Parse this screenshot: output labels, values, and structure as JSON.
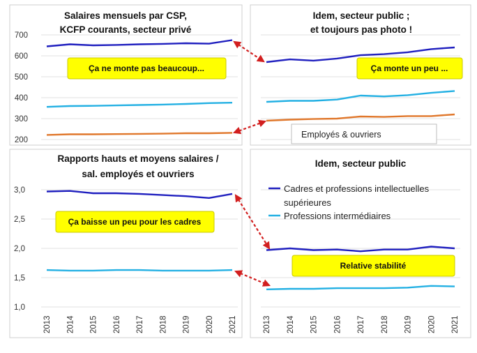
{
  "years": [
    "2013",
    "2014",
    "2015",
    "2016",
    "2017",
    "2018",
    "2019",
    "2020",
    "2021"
  ],
  "colors": {
    "cadres": "#1f1fbf",
    "intermediaires": "#23b0e3",
    "ouvriers": "#e0772b",
    "arrow": "#d21f1f",
    "note_fill": "#ffff00",
    "note_border": "#c9c900"
  },
  "chart_data": [
    {
      "type": "line",
      "title": [
        "Salaires mensuels par CSP,",
        "KCFP courants, secteur privé"
      ],
      "categories": [
        "2013",
        "2014",
        "2015",
        "2016",
        "2017",
        "2018",
        "2019",
        "2020",
        "2021"
      ],
      "ylim": [
        200,
        700
      ],
      "yticks": [
        "700",
        "600",
        "500",
        "400",
        "300",
        "200"
      ],
      "series": [
        {
          "key": "cadres",
          "values": [
            645,
            655,
            650,
            652,
            655,
            657,
            660,
            658,
            675
          ]
        },
        {
          "key": "intermediaires",
          "values": [
            356,
            360,
            361,
            363,
            365,
            367,
            370,
            374,
            376
          ]
        },
        {
          "key": "ouvriers",
          "values": [
            222,
            225,
            225,
            226,
            227,
            228,
            230,
            230,
            232
          ]
        }
      ],
      "annotation": "Ça ne monte pas beaucoup..."
    },
    {
      "type": "line",
      "title": [
        "Idem, secteur public ;",
        "et toujours pas photo !"
      ],
      "categories": [
        "2013",
        "2014",
        "2015",
        "2016",
        "2017",
        "2018",
        "2019",
        "2020",
        "2021"
      ],
      "ylim": [
        200,
        700
      ],
      "series": [
        {
          "key": "cadres",
          "values": [
            570,
            583,
            577,
            587,
            603,
            608,
            617,
            632,
            640
          ]
        },
        {
          "key": "intermediaires",
          "values": [
            380,
            385,
            385,
            391,
            410,
            406,
            412,
            423,
            432
          ]
        },
        {
          "key": "ouvriers",
          "values": [
            290,
            295,
            298,
            300,
            310,
            308,
            312,
            312,
            320
          ]
        }
      ],
      "annotation": "Ça monte un peu ...",
      "callout": "Employés & ouvriers"
    },
    {
      "type": "line",
      "title": [
        "Rapports hauts et moyens salaires /",
        "sal. employés et ouvriers"
      ],
      "categories": [
        "2013",
        "2014",
        "2015",
        "2016",
        "2017",
        "2018",
        "2019",
        "2020",
        "2021"
      ],
      "ylim": [
        1.0,
        3.0
      ],
      "yticks": [
        "3,0",
        "2,5",
        "2,0",
        "1,5",
        "1,0"
      ],
      "series": [
        {
          "key": "cadres",
          "values": [
            2.97,
            2.98,
            2.94,
            2.94,
            2.93,
            2.91,
            2.89,
            2.86,
            2.93
          ]
        },
        {
          "key": "intermediaires",
          "values": [
            1.63,
            1.62,
            1.62,
            1.63,
            1.63,
            1.62,
            1.62,
            1.62,
            1.63
          ]
        }
      ],
      "annotation": "Ça baisse un peu pour les cadres"
    },
    {
      "type": "line",
      "title": [
        "Idem, secteur public"
      ],
      "categories": [
        "2013",
        "2014",
        "2015",
        "2016",
        "2017",
        "2018",
        "2019",
        "2020",
        "2021"
      ],
      "ylim": [
        1.0,
        3.0
      ],
      "series": [
        {
          "key": "cadres",
          "name": "Cadres et professions intellectuelles supérieures",
          "values": [
            1.97,
            2.0,
            1.97,
            1.98,
            1.95,
            1.98,
            1.98,
            2.03,
            2.0
          ]
        },
        {
          "key": "intermediaires",
          "name": "Professions intermédiaires",
          "values": [
            1.3,
            1.31,
            1.31,
            1.32,
            1.32,
            1.32,
            1.33,
            1.36,
            1.35
          ]
        }
      ],
      "legend_lines": [
        "Cadres et professions intellectuelles",
        "supérieures",
        "Professions intermédiaires"
      ],
      "annotation": "Relative stabilité"
    }
  ]
}
